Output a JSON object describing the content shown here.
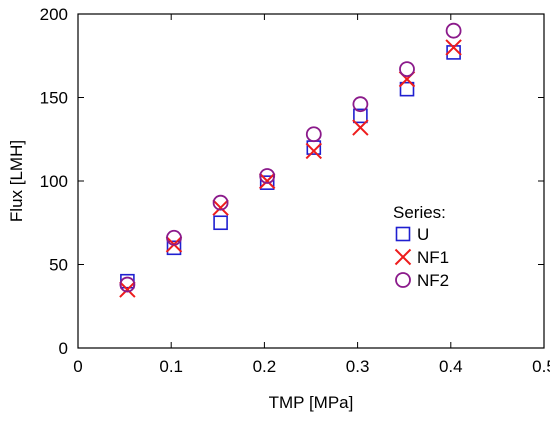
{
  "chart_data": {
    "type": "scatter",
    "title": "",
    "xlabel": "TMP [MPa]",
    "ylabel": "Flux [LMH]",
    "xlim": [
      0,
      0.5
    ],
    "ylim": [
      0,
      200
    ],
    "xticks": [
      0,
      0.1,
      0.2,
      0.3,
      0.4,
      0.5
    ],
    "xtick_labels": [
      "0",
      "0.1",
      "0.2",
      "0.3",
      "0.4",
      "0.5"
    ],
    "yticks": [
      0,
      50,
      100,
      150,
      200
    ],
    "ytick_labels": [
      "0",
      "50",
      "100",
      "150",
      "200"
    ],
    "grid": false,
    "legend": {
      "title": "Series:",
      "placement": "lower-right"
    },
    "series": [
      {
        "name": "U",
        "marker": "square",
        "color": "#1f1fd0",
        "x": [
          0.053,
          0.103,
          0.153,
          0.203,
          0.253,
          0.303,
          0.353,
          0.403
        ],
        "y": [
          40,
          60,
          75,
          99,
          120,
          139,
          155,
          177
        ]
      },
      {
        "name": "NF1",
        "marker": "x",
        "color": "#ee1c1c",
        "x": [
          0.053,
          0.103,
          0.153,
          0.203,
          0.253,
          0.303,
          0.353,
          0.403
        ],
        "y": [
          35,
          62,
          84,
          100,
          118,
          132,
          161,
          180
        ]
      },
      {
        "name": "NF2",
        "marker": "circle",
        "color": "#8b1a8b",
        "x": [
          0.053,
          0.103,
          0.153,
          0.203,
          0.253,
          0.303,
          0.353,
          0.403
        ],
        "y": [
          38,
          66,
          87,
          103,
          128,
          146,
          167,
          190
        ]
      }
    ]
  }
}
